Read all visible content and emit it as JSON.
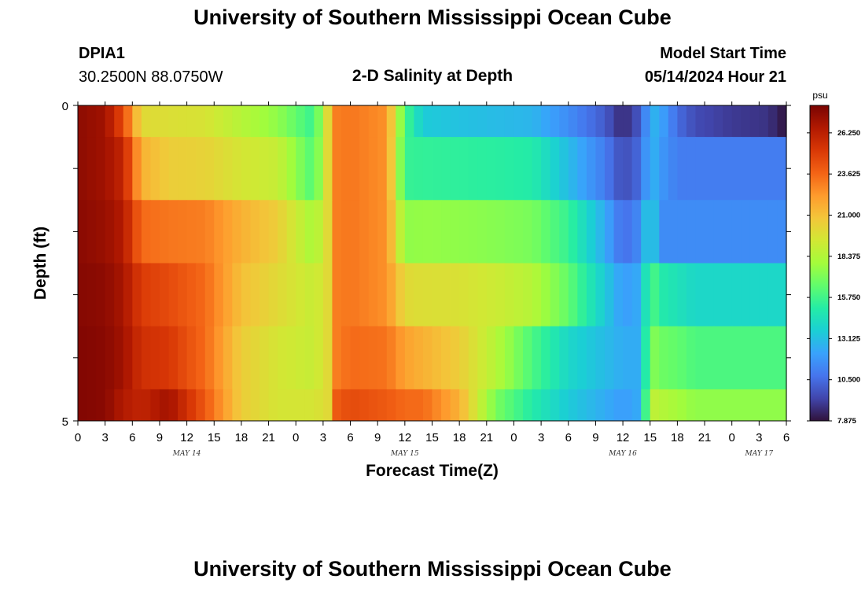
{
  "header": {
    "title": "University of Southern Mississippi Ocean Cube",
    "station_id": "DPIA1",
    "coordinates": "30.2500N  88.0750W",
    "chart_title": "2-D Salinity at Depth",
    "model_start_label": "Model Start Time",
    "model_start_value": "05/14/2024 Hour 21"
  },
  "footer": {
    "title": "University of Southern Mississippi Ocean Cube"
  },
  "colors": {
    "colormap": [
      "#30123b",
      "#4145ab",
      "#4675ed",
      "#39a2fc",
      "#1bcfd4",
      "#24eca6",
      "#61fc6c",
      "#a4fc3b",
      "#d1e834",
      "#f3c63a",
      "#fe9b2d",
      "#f36315",
      "#d93806",
      "#b11901",
      "#7a0402"
    ]
  },
  "chart_data": {
    "type": "heatmap",
    "title": "2-D Salinity at Depth",
    "xlabel": "Forecast Time(Z)",
    "ylabel": "Depth (ft)",
    "colorbar_unit": "psu",
    "colorbar_ticks": [
      "26.250",
      "23.625",
      "21.000",
      "18.375",
      "15.750",
      "13.125",
      "10.500",
      "7.875"
    ],
    "colorbar_range": [
      7.875,
      28.0
    ],
    "x_tick_labels": [
      "0",
      "3",
      "6",
      "9",
      "12",
      "15",
      "18",
      "21",
      "0",
      "3",
      "6",
      "9",
      "12",
      "15",
      "18",
      "21",
      "0",
      "3",
      "6",
      "9",
      "12",
      "15",
      "18",
      "21",
      "0",
      "3",
      "6"
    ],
    "x_range_hours": [
      0,
      78
    ],
    "date_labels": [
      {
        "text": "MAY 14",
        "hour": 12
      },
      {
        "text": "MAY 15",
        "hour": 36
      },
      {
        "text": "MAY 16",
        "hour": 60
      },
      {
        "text": "MAY 17",
        "hour": 75
      }
    ],
    "y_tick_labels": [
      {
        "text": "0",
        "depth": 0
      },
      {
        "text": "5",
        "depth": 5
      }
    ],
    "ylim": [
      0,
      5
    ],
    "layer_depths": [
      0.5,
      1.5,
      2.5,
      3.5,
      4.5,
      5.0
    ],
    "keypoints_hours": [
      0,
      3,
      5,
      7,
      10,
      14,
      18,
      22,
      26,
      27.5,
      28.5,
      30,
      34,
      36,
      38,
      42,
      46,
      50,
      54,
      58,
      60,
      62,
      63,
      64,
      66,
      68,
      72,
      76,
      78
    ],
    "layers": [
      {
        "depth": "0-0.5",
        "values": [
          27.5,
          27.0,
          24.5,
          20.0,
          19.8,
          19.6,
          18.5,
          17.5,
          15.5,
          20.0,
          23.0,
          23.2,
          22.5,
          16.0,
          13.5,
          13.2,
          13.0,
          12.8,
          11.5,
          10.0,
          8.5,
          10.0,
          12.8,
          12.5,
          10.5,
          9.5,
          9.0,
          8.8,
          7.9
        ]
      },
      {
        "depth": "0.5-1.5",
        "values": [
          27.5,
          27.0,
          26.0,
          21.5,
          20.5,
          20.3,
          19.5,
          19.0,
          16.0,
          20.0,
          23.0,
          23.2,
          22.5,
          15.5,
          15.4,
          15.3,
          15.2,
          15.0,
          13.0,
          11.0,
          9.5,
          10.5,
          13.0,
          12.0,
          11.0,
          11.0,
          11.0,
          11.0,
          11.0
        ]
      },
      {
        "depth": "1.5-2.5",
        "values": [
          27.6,
          27.2,
          26.5,
          23.5,
          23.2,
          23.0,
          21.5,
          20.5,
          18.0,
          20.0,
          23.0,
          23.2,
          22.5,
          17.5,
          17.6,
          17.5,
          17.3,
          17.0,
          15.5,
          12.5,
          10.5,
          11.5,
          14.5,
          11.5,
          11.5,
          11.5,
          11.5,
          11.5,
          11.5
        ]
      },
      {
        "depth": "2.5-3.5",
        "values": [
          27.7,
          27.5,
          26.8,
          25.0,
          24.5,
          23.5,
          21.0,
          20.0,
          19.0,
          20.0,
          23.0,
          23.2,
          22.5,
          20.0,
          19.8,
          19.7,
          19.2,
          18.5,
          16.5,
          13.5,
          12.0,
          12.5,
          16.5,
          15.0,
          14.5,
          14.0,
          14.0,
          14.0,
          14.0
        ]
      },
      {
        "depth": "3.5-4.5",
        "values": [
          27.8,
          27.6,
          27.0,
          25.5,
          25.2,
          23.5,
          20.5,
          19.5,
          19.0,
          20.0,
          23.0,
          23.5,
          23.3,
          22.0,
          21.5,
          20.5,
          18.5,
          16.0,
          14.0,
          13.0,
          12.5,
          12.5,
          17.5,
          16.8,
          16.5,
          16.0,
          16.0,
          16.0,
          16.0
        ]
      },
      {
        "depth": "4.5-5",
        "values": [
          27.8,
          27.6,
          26.5,
          26.0,
          27.0,
          24.0,
          20.5,
          19.5,
          19.5,
          20.0,
          24.0,
          24.5,
          24.0,
          23.5,
          23.5,
          21.5,
          17.0,
          15.0,
          13.5,
          12.5,
          12.0,
          12.5,
          19.0,
          18.5,
          18.0,
          17.5,
          17.5,
          17.5,
          17.5
        ]
      }
    ]
  }
}
